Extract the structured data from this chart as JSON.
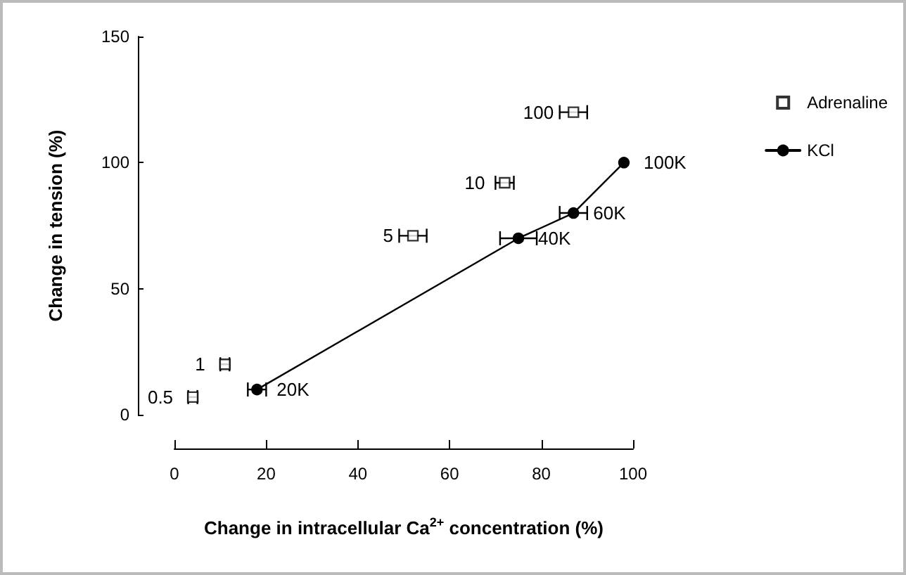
{
  "chart_data": {
    "type": "scatter",
    "xlabel": "Change in intracellular Ca$^{2+}$ concentration (%)",
    "ylabel": "Change in tension (%)",
    "xlim": [
      0,
      100
    ],
    "xticks": [
      0,
      20,
      40,
      60,
      80,
      100
    ],
    "ylim": [
      0,
      150
    ],
    "yticks": [
      0,
      50,
      100,
      150
    ],
    "grid": false,
    "legend": "right",
    "series": [
      {
        "name": "Adrenaline",
        "marker": "square",
        "color": "#000000",
        "x": [
          4,
          11,
          52,
          72,
          87
        ],
        "values": [
          7,
          20,
          71,
          92,
          120
        ],
        "xerrors": [
          1,
          1,
          3,
          2,
          3
        ]
      },
      {
        "name": "KCl",
        "type": "line",
        "marker": "circle",
        "color": "#000000",
        "x": [
          18,
          75,
          87,
          98
        ],
        "values": [
          10,
          70,
          80,
          100
        ],
        "xerrors": [
          2,
          4,
          3,
          null
        ]
      }
    ],
    "annotations": [
      {
        "text": "0.5",
        "x": 4,
        "y": 7
      },
      {
        "text": "1",
        "x": 11,
        "y": 20
      },
      {
        "text": "5",
        "x": 52,
        "y": 71
      },
      {
        "text": "10",
        "x": 72,
        "y": 92
      },
      {
        "text": "100",
        "x": 87,
        "y": 120
      },
      {
        "text": "20K",
        "x": 18,
        "y": 10
      },
      {
        "text": "40K",
        "x": 75,
        "y": 70
      },
      {
        "text": "60K",
        "x": 87,
        "y": 80
      },
      {
        "text": "100K",
        "x": 98,
        "y": 100
      }
    ]
  }
}
